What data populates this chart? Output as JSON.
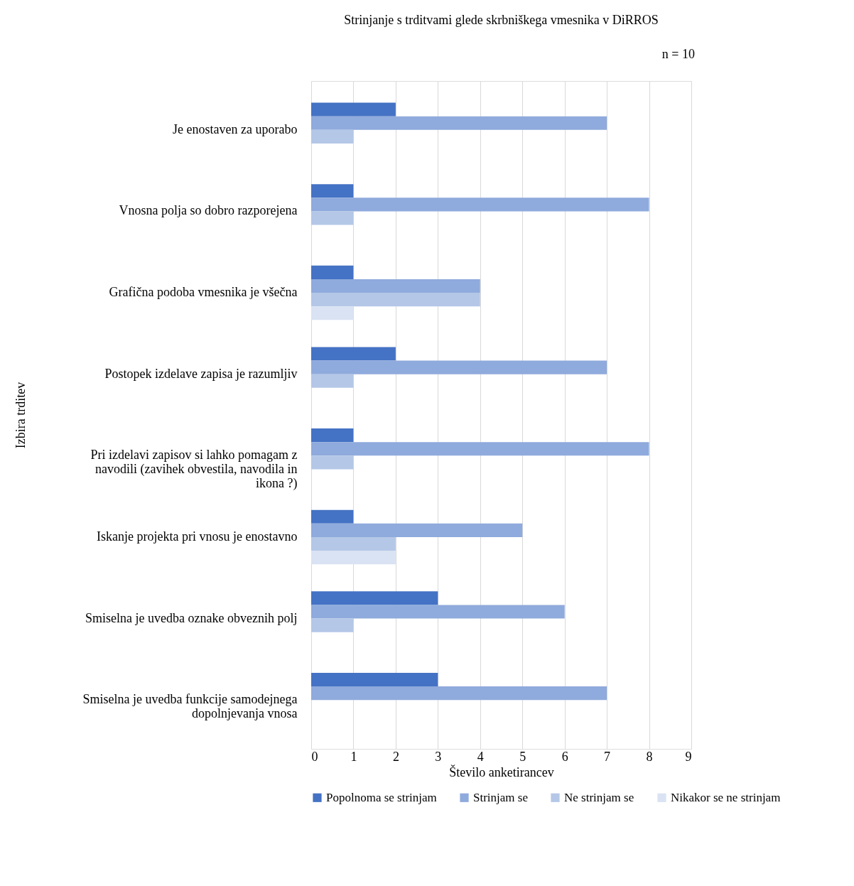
{
  "chart_data": {
    "type": "bar",
    "orientation": "horizontal",
    "title": "Strinjanje s trditvami glede skrbniškega vmesnika v DiRROS",
    "annotations": [
      "n = 10"
    ],
    "xlabel": "Število anketirancev",
    "ylabel": "Izbira trditev",
    "categories": [
      "Je enostaven za uporabo",
      "Vnosna polja so dobro razporejena",
      "Grafična podoba vmesnika je všečna",
      "Postopek izdelave zapisa je razumljiv",
      "Pri izdelavi zapisov si lahko pomagam z navodili (zavihek obvestila, navodila in ikona ?)",
      "Iskanje projekta pri vnosu je enostavno",
      "Smiselna je uvedba oznake obveznih polj",
      "Smiselna je uvedba funkcije samodejnega dopolnjevanja vnosa"
    ],
    "series": [
      {
        "name": "Popolnoma se strinjam",
        "color": "#4472c4",
        "values": [
          2,
          1,
          1,
          2,
          1,
          1,
          3,
          3
        ]
      },
      {
        "name": "Strinjam se",
        "color": "#8faadc",
        "values": [
          7,
          8,
          4,
          7,
          8,
          5,
          6,
          7
        ]
      },
      {
        "name": "Ne strinjam se",
        "color": "#b4c7e7",
        "values": [
          1,
          1,
          4,
          1,
          1,
          2,
          1,
          0
        ]
      },
      {
        "name": "Nikakor se ne strinjam",
        "color": "#dae3f3",
        "values": [
          0,
          0,
          1,
          0,
          0,
          2,
          0,
          0
        ]
      }
    ],
    "xlim": [
      0,
      9
    ],
    "xticks": [
      0,
      1,
      2,
      3,
      4,
      5,
      6,
      7,
      8,
      9
    ],
    "grid": "x",
    "legend": "bottom"
  }
}
